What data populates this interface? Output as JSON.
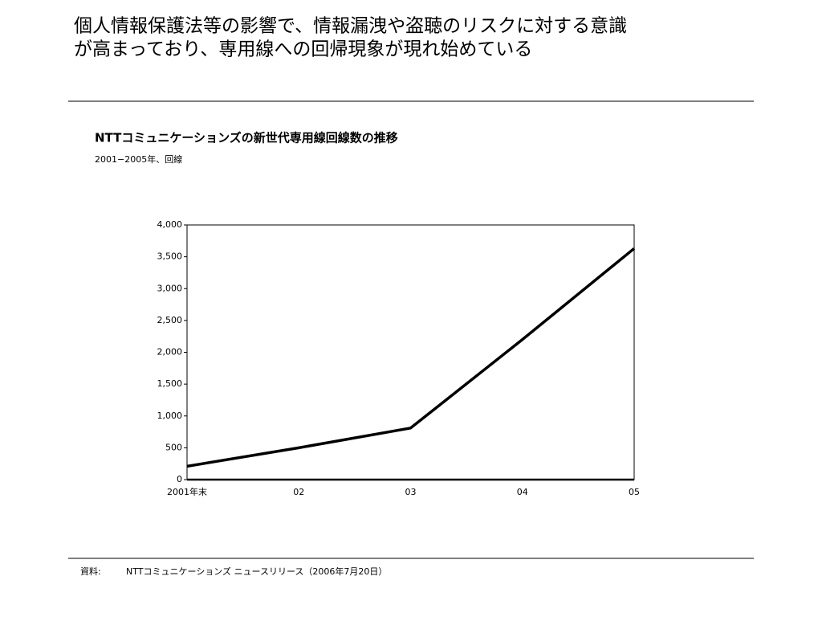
{
  "headline": [
    "個人情報保護法等の影響で、情報漏洩や盗聴のリスクに対する意識",
    "が高まっており、専用線への回帰現象が現れ始めている"
  ],
  "chart_data": {
    "type": "line",
    "title": "NTTコミュニケーションズの新世代専用線回線数の推移",
    "subtitle": "2001−2005年、回線",
    "categories": [
      "2001年末",
      "02",
      "03",
      "04",
      "05"
    ],
    "values": [
      210,
      500,
      810,
      2200,
      3630
    ],
    "color": "#000000",
    "ylim": [
      0,
      4000
    ],
    "yticks": [
      0,
      500,
      {
        "value": 1000,
        "label": "1,000"
      },
      {
        "value": 1500,
        "label": "1,500"
      },
      {
        "value": 2000,
        "label": "2,000"
      },
      {
        "value": 2500,
        "label": "2,500"
      },
      {
        "value": 3000,
        "label": "3,000"
      },
      {
        "value": 3500,
        "label": "3,500"
      },
      {
        "value": 4000,
        "label": "4,000"
      }
    ],
    "grid": false
  },
  "source": {
    "label": "資料:",
    "text": "NTTコミュニケーションズ ニュースリリース（2006年7月20日）"
  }
}
